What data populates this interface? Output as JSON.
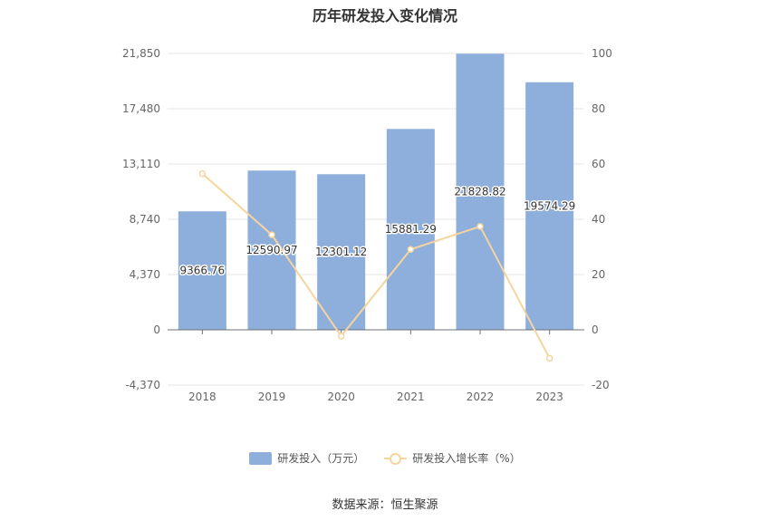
{
  "chart_data": {
    "type": "bar",
    "title": "历年研发投入变化情况",
    "categories": [
      "2018",
      "2019",
      "2020",
      "2021",
      "2022",
      "2023"
    ],
    "series": [
      {
        "name": "研发投入（万元）",
        "type": "bar",
        "axis": "left",
        "color": "#8eaedb",
        "values": [
          9366.76,
          12590.97,
          12301.12,
          15881.29,
          21828.82,
          19574.29
        ],
        "labels": [
          "9366.76",
          "12590.97",
          "12301.12",
          "15881.29",
          "21828.82",
          "19574.29"
        ]
      },
      {
        "name": "研发投入增长率（%）",
        "type": "line",
        "axis": "right",
        "color": "#f5d59d",
        "values": [
          56.5,
          34.4,
          -2.3,
          29.1,
          37.4,
          -10.3
        ]
      }
    ],
    "y_left": {
      "ticks": [
        -4370,
        0,
        4370,
        8740,
        13110,
        17480,
        21850
      ],
      "tick_labels": [
        "-4,370",
        "0",
        "4,370",
        "8,740",
        "13,110",
        "17,480",
        "21,850"
      ],
      "ylim": [
        -4370,
        21850
      ]
    },
    "y_right": {
      "ticks": [
        -20,
        0,
        20,
        40,
        60,
        80,
        100
      ],
      "tick_labels": [
        "-20",
        "0",
        "20",
        "40",
        "60",
        "80",
        "100"
      ],
      "ylim": [
        -20,
        100
      ]
    },
    "grid": true,
    "legend_position": "bottom"
  },
  "source": "数据来源：恒生聚源"
}
